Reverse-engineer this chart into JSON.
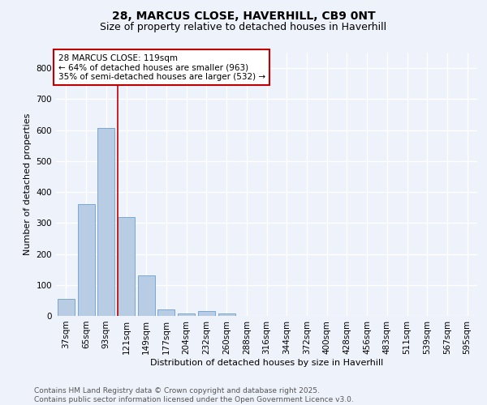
{
  "title_line1": "28, MARCUS CLOSE, HAVERHILL, CB9 0NT",
  "title_line2": "Size of property relative to detached houses in Haverhill",
  "xlabel": "Distribution of detached houses by size in Haverhill",
  "ylabel": "Number of detached properties",
  "categories": [
    "37sqm",
    "65sqm",
    "93sqm",
    "121sqm",
    "149sqm",
    "177sqm",
    "204sqm",
    "232sqm",
    "260sqm",
    "288sqm",
    "316sqm",
    "344sqm",
    "372sqm",
    "400sqm",
    "428sqm",
    "456sqm",
    "483sqm",
    "511sqm",
    "539sqm",
    "567sqm",
    "595sqm"
  ],
  "values": [
    55,
    360,
    608,
    320,
    130,
    22,
    8,
    15,
    8,
    0,
    0,
    0,
    0,
    0,
    0,
    0,
    0,
    0,
    0,
    0,
    0
  ],
  "bar_color": "#b8cce4",
  "bar_edge_color": "#6a9fd0",
  "vline_color": "#c00000",
  "annotation_text": "28 MARCUS CLOSE: 119sqm\n← 64% of detached houses are smaller (963)\n35% of semi-detached houses are larger (532) →",
  "annotation_box_color": "#ffffff",
  "annotation_box_edge": "#c00000",
  "ylim": [
    0,
    850
  ],
  "yticks": [
    0,
    100,
    200,
    300,
    400,
    500,
    600,
    700,
    800
  ],
  "background_color": "#eef2fa",
  "plot_bg_color": "#eef2fa",
  "grid_color": "#ffffff",
  "footer_line1": "Contains HM Land Registry data © Crown copyright and database right 2025.",
  "footer_line2": "Contains public sector information licensed under the Open Government Licence v3.0.",
  "title_fontsize": 10,
  "subtitle_fontsize": 9,
  "axis_label_fontsize": 8,
  "tick_fontsize": 7.5,
  "annotation_fontsize": 7.5,
  "footer_fontsize": 6.5
}
